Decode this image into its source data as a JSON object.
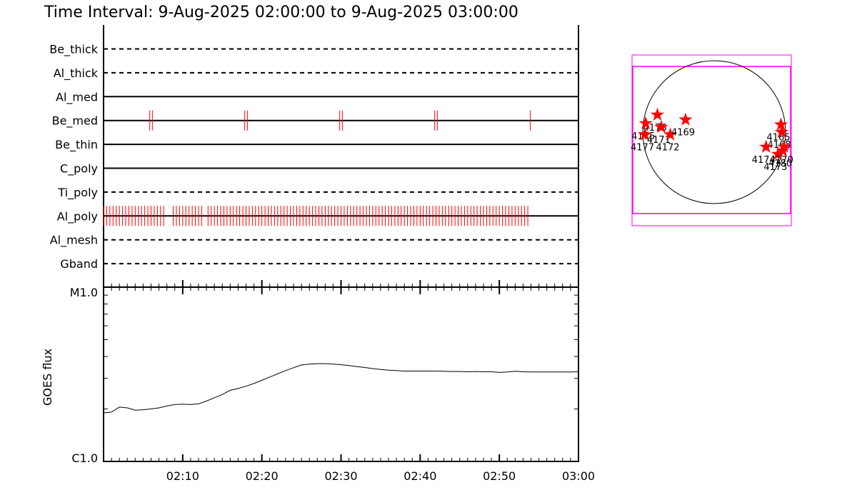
{
  "title": "Time Interval:  9-Aug-2025 02:00:00 to  9-Aug-2025 03:00:00",
  "colors": {
    "events": "#ff0000",
    "fov": "#ff00ff",
    "axes": "#000000",
    "stars": "#ff0000"
  },
  "chart_data": [
    {
      "type": "timeline",
      "filters": [
        {
          "name": "Be_thick",
          "style": "dashed",
          "events": []
        },
        {
          "name": "Al_thick",
          "style": "dashed",
          "events": []
        },
        {
          "name": "Al_med",
          "style": "solid",
          "events": []
        },
        {
          "name": "Be_med",
          "style": "solid",
          "events": [
            "02:05:50",
            "02:06:10",
            "02:17:50",
            "02:18:10",
            "02:29:50",
            "02:30:10",
            "02:41:50",
            "02:42:10",
            "02:53:55"
          ]
        },
        {
          "name": "Be_thin",
          "style": "solid",
          "events": []
        },
        {
          "name": "C_poly",
          "style": "solid",
          "events": []
        },
        {
          "name": "Ti_poly",
          "style": "dashed",
          "events": []
        },
        {
          "name": "Al_poly",
          "style": "solid",
          "events_start": "02:00:00",
          "events_end": "02:53:45",
          "events_step_seconds": 24,
          "events_gaps": [
            [
              "02:08:00",
              "02:08:30"
            ],
            [
              "02:12:40",
              "02:13:10"
            ]
          ]
        },
        {
          "name": "Al_mesh",
          "style": "dashed",
          "events": []
        },
        {
          "name": "Gband",
          "style": "dashed",
          "events": []
        }
      ]
    },
    {
      "type": "line",
      "ylabel": "GOES flux",
      "yscale": "log",
      "y_tick_labels": [
        "M1.0",
        "C1.0"
      ],
      "ylim": [
        1e-06,
        1e-05
      ],
      "x_tick_labels": [
        "02:10",
        "02:20",
        "02:30",
        "02:40",
        "02:50",
        "03:00"
      ],
      "xlim": [
        "02:00",
        "03:00"
      ],
      "series": [
        {
          "x": [
            0,
            1,
            2,
            3,
            4,
            5,
            6,
            7,
            8,
            9,
            10,
            11,
            12,
            13,
            14,
            15,
            16,
            17,
            18,
            19,
            20,
            21,
            22,
            23,
            24,
            25,
            26,
            27,
            28,
            29,
            30,
            31,
            32,
            33,
            34,
            35,
            36,
            37,
            38,
            39,
            40,
            41,
            42,
            43,
            44,
            45,
            46,
            47,
            48,
            49,
            50,
            51,
            52,
            53,
            54,
            55,
            56,
            57,
            58,
            59,
            60
          ],
          "y": [
            1.9e-06,
            1.92e-06,
            2.05e-06,
            2.03e-06,
            1.97e-06,
            1.98e-06,
            2e-06,
            2.03e-06,
            2.08e-06,
            2.12e-06,
            2.13e-06,
            2.12e-06,
            2.14e-06,
            2.22e-06,
            2.32e-06,
            2.42e-06,
            2.56e-06,
            2.62e-06,
            2.7e-06,
            2.8e-06,
            2.92e-06,
            3.05e-06,
            3.18e-06,
            3.32e-06,
            3.45e-06,
            3.58e-06,
            3.62e-06,
            3.64e-06,
            3.64e-06,
            3.62e-06,
            3.59e-06,
            3.55e-06,
            3.5e-06,
            3.46e-06,
            3.41e-06,
            3.37e-06,
            3.34e-06,
            3.32e-06,
            3.3e-06,
            3.3e-06,
            3.3e-06,
            3.3e-06,
            3.3e-06,
            3.29e-06,
            3.28e-06,
            3.28e-06,
            3.27e-06,
            3.28e-06,
            3.27e-06,
            3.27e-06,
            3.24e-06,
            3.26e-06,
            3.29e-06,
            3.27e-06,
            3.26e-06,
            3.26e-06,
            3.26e-06,
            3.26e-06,
            3.26e-06,
            3.26e-06,
            3.27e-06
          ]
        }
      ]
    }
  ],
  "solar_map": {
    "regions": [
      {
        "label": "4176",
        "lon": -55,
        "lat": 14
      },
      {
        "label": "4175",
        "lon": -75,
        "lat": 7
      },
      {
        "label": "4177",
        "lon": -76,
        "lat": -2
      },
      {
        "label": "4171",
        "lon": -48,
        "lat": 4
      },
      {
        "label": "4172",
        "lon": -38,
        "lat": -2
      },
      {
        "label": "4169",
        "lon": -24,
        "lat": 10
      },
      {
        "label": "4165",
        "lon": 70,
        "lat": 6
      },
      {
        "label": "4168",
        "lon": 71,
        "lat": 0
      },
      {
        "label": "4174",
        "lon": 48,
        "lat": -12
      },
      {
        "label": "4173",
        "lon": 70,
        "lat": -18
      },
      {
        "label": "4180",
        "lon": 84,
        "lat": -15
      },
      {
        "label": "4170",
        "lon": 88,
        "lat": -12
      }
    ]
  }
}
